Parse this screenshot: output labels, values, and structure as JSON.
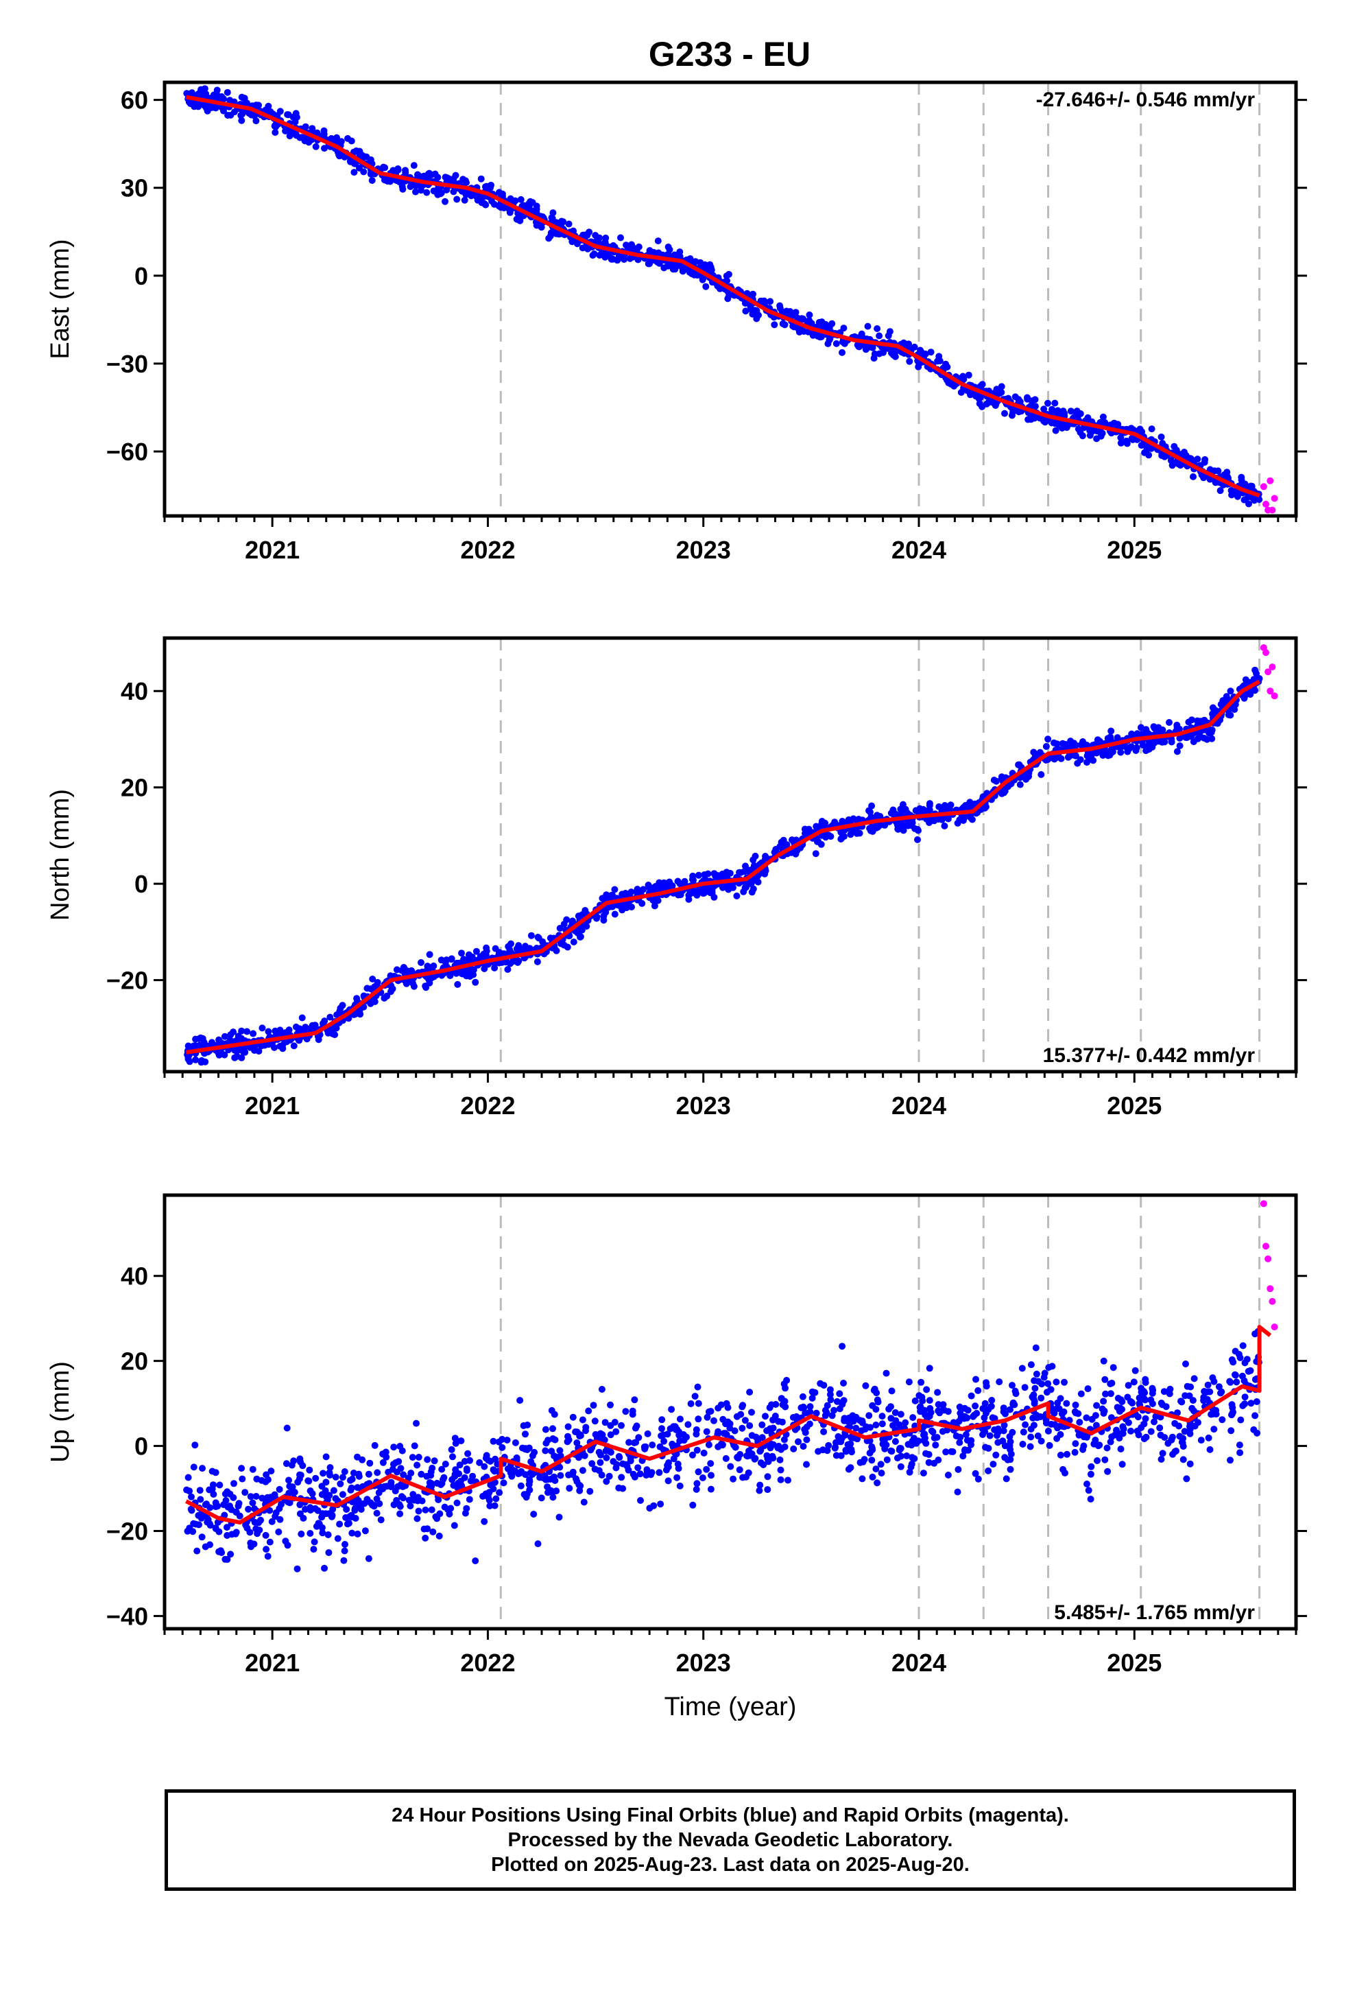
{
  "chart_data": [
    {
      "type": "scatter",
      "title": "G233 - EU",
      "ylabel": "East (mm)",
      "xlabel": "",
      "xlim": [
        2020.5,
        2025.75
      ],
      "ylim": [
        -82,
        66
      ],
      "yticks": [
        -60,
        -30,
        0,
        30,
        60
      ],
      "ytick_labels": [
        "−60",
        "−30",
        "0",
        "30",
        "60"
      ],
      "xticks": [
        2021,
        2022,
        2023,
        2024,
        2025
      ],
      "xtick_labels": [
        "2021",
        "2022",
        "2023",
        "2024",
        "2025"
      ],
      "rate_label": "-27.646+/- 0.546 mm/yr",
      "rate_position": "top-right",
      "event_lines": [
        2022.06,
        2024.0,
        2024.3,
        2024.6,
        2025.03,
        2025.58
      ],
      "trend": {
        "x": [
          2020.6,
          2020.9,
          2021.3,
          2021.5,
          2021.7,
          2021.9,
          2022.0,
          2022.3,
          2022.5,
          2022.7,
          2022.9,
          2023.0,
          2023.3,
          2023.5,
          2023.7,
          2023.9,
          2024.0,
          2024.2,
          2024.4,
          2024.6,
          2024.8,
          2025.0,
          2025.1,
          2025.3,
          2025.5,
          2025.58
        ],
        "y": [
          61,
          57,
          44,
          35,
          32,
          30,
          28,
          17,
          10,
          7,
          5,
          1,
          -12,
          -18,
          -22,
          -24,
          -28,
          -37,
          -43,
          -48,
          -51,
          -54,
          -58,
          -66,
          -73,
          -75
        ]
      },
      "series": [
        {
          "color": "#0000ff",
          "marker": "dot",
          "x_range": [
            2020.6,
            2025.58
          ],
          "follows": "trend",
          "scatter_sd": 1.8,
          "n": 1500
        },
        {
          "color": "#ff00ff",
          "marker": "dot",
          "x": [
            2025.6,
            2025.61,
            2025.62,
            2025.63,
            2025.64,
            2025.65
          ],
          "y": [
            -72,
            -78,
            -80,
            -70,
            -80,
            -76
          ]
        }
      ]
    },
    {
      "type": "scatter",
      "title": "",
      "ylabel": "North (mm)",
      "xlabel": "",
      "xlim": [
        2020.5,
        2025.75
      ],
      "ylim": [
        -39,
        51
      ],
      "yticks": [
        -20,
        0,
        20,
        40
      ],
      "ytick_labels": [
        "−20",
        "0",
        "20",
        "40"
      ],
      "xticks": [
        2021,
        2022,
        2023,
        2024,
        2025
      ],
      "xtick_labels": [
        "2021",
        "2022",
        "2023",
        "2024",
        "2025"
      ],
      "rate_label": "15.377+/- 0.442 mm/yr",
      "rate_position": "bottom-right",
      "event_lines": [
        2022.06,
        2024.0,
        2024.3,
        2024.6,
        2025.03,
        2025.58
      ],
      "trend": {
        "x": [
          2020.6,
          2020.9,
          2021.2,
          2021.35,
          2021.55,
          2021.8,
          2022.0,
          2022.25,
          2022.4,
          2022.55,
          2022.8,
          2023.0,
          2023.2,
          2023.35,
          2023.55,
          2023.8,
          2024.0,
          2024.25,
          2024.4,
          2024.6,
          2024.8,
          2025.0,
          2025.2,
          2025.35,
          2025.5,
          2025.58
        ],
        "y": [
          -35,
          -33,
          -31,
          -27,
          -20,
          -18,
          -16,
          -14,
          -9,
          -4,
          -2,
          0,
          1,
          6,
          11,
          13,
          14,
          15,
          21,
          27,
          28,
          30,
          31,
          33,
          40,
          42
        ]
      },
      "series": [
        {
          "color": "#0000ff",
          "marker": "dot",
          "x_range": [
            2020.6,
            2025.58
          ],
          "follows": "trend",
          "scatter_sd": 1.2,
          "n": 1500
        },
        {
          "color": "#ff00ff",
          "marker": "dot",
          "x": [
            2025.6,
            2025.61,
            2025.62,
            2025.63,
            2025.64,
            2025.65
          ],
          "y": [
            49,
            48,
            44,
            40,
            45,
            39
          ]
        }
      ]
    },
    {
      "type": "scatter",
      "title": "",
      "ylabel": "Up (mm)",
      "xlabel": "Time (year)",
      "xlim": [
        2020.5,
        2025.75
      ],
      "ylim": [
        -43,
        59
      ],
      "yticks": [
        -40,
        -20,
        0,
        20,
        40
      ],
      "ytick_labels": [
        "−40",
        "−20",
        "0",
        "20",
        "40"
      ],
      "xticks": [
        2021,
        2022,
        2023,
        2024,
        2025
      ],
      "xtick_labels": [
        "2021",
        "2022",
        "2023",
        "2024",
        "2025"
      ],
      "rate_label": "5.485+/- 1.765 mm/yr",
      "rate_position": "bottom-right",
      "event_lines": [
        2022.06,
        2024.0,
        2024.3,
        2024.6,
        2025.03,
        2025.58
      ],
      "trend": {
        "x": [
          2020.6,
          2020.75,
          2020.85,
          2021.05,
          2021.3,
          2021.55,
          2021.8,
          2022.06,
          2022.06,
          2022.25,
          2022.5,
          2022.75,
          2023.05,
          2023.25,
          2023.5,
          2023.75,
          2024.0,
          2024.0,
          2024.2,
          2024.4,
          2024.6,
          2024.6,
          2024.8,
          2025.03,
          2025.25,
          2025.5,
          2025.58,
          2025.58,
          2025.63
        ],
        "y": [
          -13,
          -17,
          -18,
          -12,
          -14,
          -7,
          -12,
          -7,
          -3,
          -6,
          1,
          -3,
          2,
          0,
          7,
          2,
          4,
          6,
          4,
          6,
          10,
          7,
          3,
          9,
          6,
          14,
          13,
          28,
          26
        ]
      },
      "series": [
        {
          "color": "#0000ff",
          "marker": "dot",
          "x_range": [
            2020.6,
            2025.58
          ],
          "follows": "trend",
          "scatter_sd": 5.5,
          "n": 1500
        },
        {
          "color": "#ff00ff",
          "marker": "dot",
          "x": [
            2025.6,
            2025.61,
            2025.62,
            2025.63,
            2025.64,
            2025.65
          ],
          "y": [
            57,
            47,
            44,
            37,
            34,
            28
          ]
        }
      ]
    }
  ],
  "footer": {
    "line1": "24 Hour Positions Using Final Orbits (blue) and Rapid Orbits (magenta).",
    "line2": "Processed by the Nevada Geodetic Laboratory.",
    "line3": "Plotted on 2025-Aug-23. Last data on 2025-Aug-20."
  },
  "colors": {
    "final_orbits": "#0000ff",
    "rapid_orbits": "#ff00ff",
    "trend": "#ff0000",
    "event_line": "#bbbbbb"
  }
}
